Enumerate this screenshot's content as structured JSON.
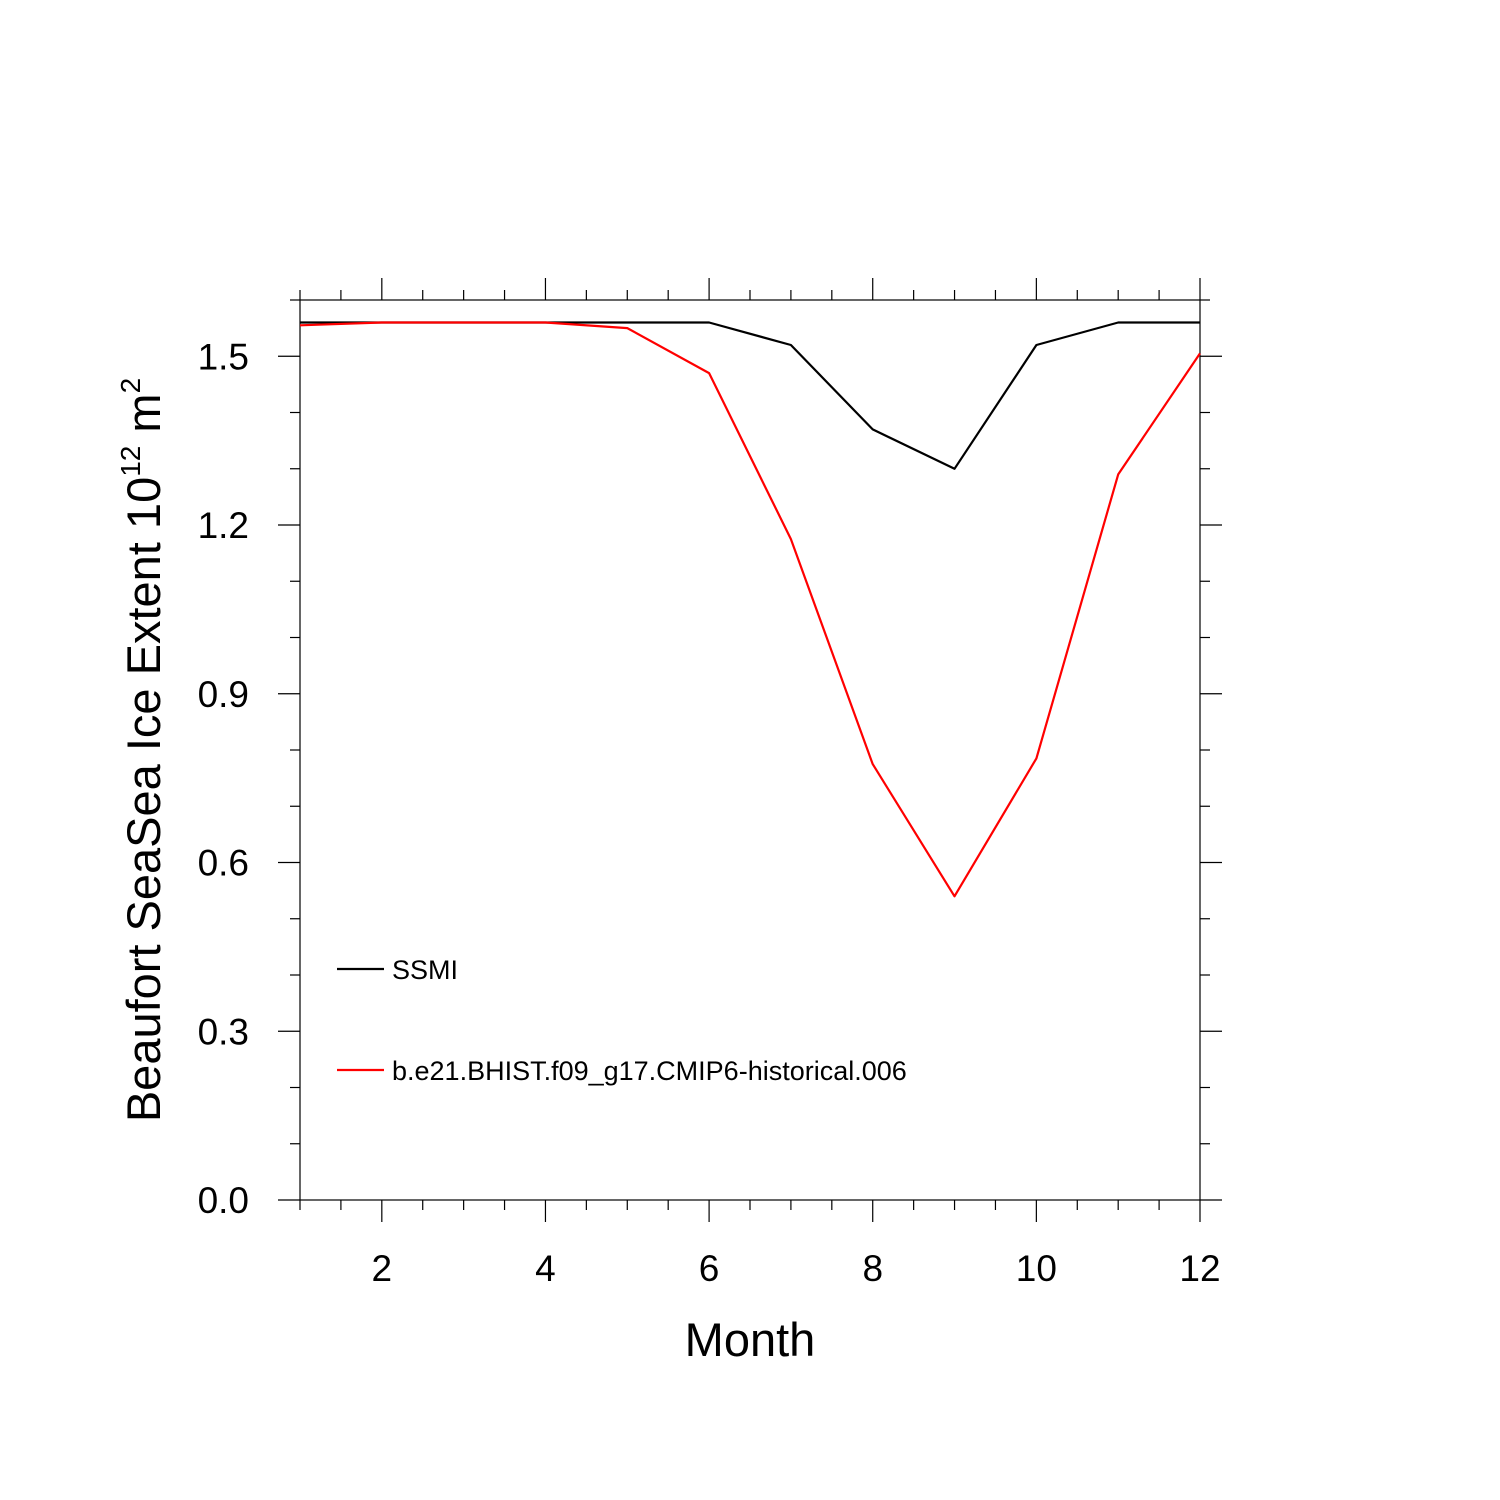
{
  "chart_data": {
    "type": "line",
    "xlabel": "Month",
    "ylabel": {
      "prefix": "Beaufort SeaSea Ice Extent 10",
      "exponent": "12",
      "unit": " m",
      "unit_exponent": "2"
    },
    "xlim": [
      1,
      12
    ],
    "ylim": [
      0,
      1.6
    ],
    "x_ticks": [
      2,
      4,
      6,
      8,
      10,
      12
    ],
    "x_tick_labels": [
      "2",
      "4",
      "6",
      "8",
      "10",
      "12"
    ],
    "y_ticks": [
      0,
      0.3,
      0.6,
      0.9,
      1.2,
      1.5
    ],
    "y_tick_labels": [
      "0.0",
      "0.3",
      "0.6",
      "0.9",
      "1.2",
      "1.5"
    ],
    "x": [
      1,
      2,
      3,
      4,
      5,
      6,
      7,
      8,
      9,
      10,
      11,
      12
    ],
    "series": [
      {
        "name": "SSMI",
        "color": "#000000",
        "values": [
          1.56,
          1.56,
          1.56,
          1.56,
          1.56,
          1.56,
          1.52,
          1.37,
          1.3,
          1.52,
          1.56,
          1.56
        ]
      },
      {
        "name": "b.e21.BHIST.f09_g17.CMIP6-historical.006",
        "color": "#ff0000",
        "values": [
          1.555,
          1.56,
          1.56,
          1.56,
          1.55,
          1.47,
          1.175,
          0.775,
          0.54,
          0.785,
          1.29,
          1.505
        ]
      }
    ],
    "legend_position": "lower-left",
    "grid": false
  }
}
